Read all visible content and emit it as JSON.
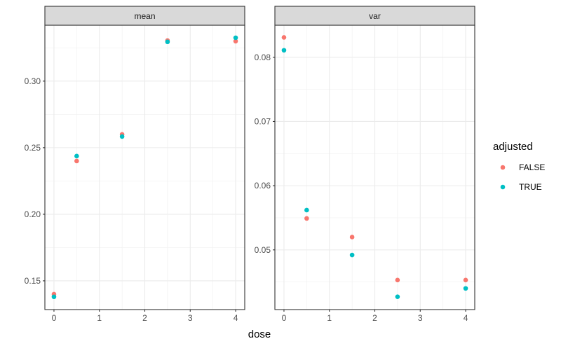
{
  "chart_data": {
    "type": "scatter",
    "xlabel": "dose",
    "facets": [
      {
        "title": "mean",
        "ylim": [
          0.1284,
          0.342
        ],
        "yticks": [
          0.15,
          0.2,
          0.25,
          0.3
        ],
        "ytick_labels": [
          "0.15",
          "0.20",
          "0.25",
          "0.30"
        ],
        "series": [
          {
            "name": "FALSE",
            "x": [
              0,
              0.5,
              1.5,
              2.5,
              4
            ],
            "y": [
              0.14,
              0.24,
              0.26,
              0.3305,
              0.33
            ]
          },
          {
            "name": "TRUE",
            "x": [
              0,
              0.5,
              1.5,
              2.5,
              4
            ],
            "y": [
              0.138,
              0.2437,
              0.2584,
              0.3295,
              0.3326
            ]
          }
        ]
      },
      {
        "title": "var",
        "ylim": [
          0.0407,
          0.085
        ],
        "yticks": [
          0.05,
          0.06,
          0.07,
          0.08
        ],
        "ytick_labels": [
          "0.05",
          "0.06",
          "0.07",
          "0.08"
        ],
        "series": [
          {
            "name": "FALSE",
            "x": [
              0,
              0.5,
              1.5,
              2.5,
              4
            ],
            "y": [
              0.0831,
              0.0549,
              0.052,
              0.0453,
              0.0453
            ]
          },
          {
            "name": "TRUE",
            "x": [
              0,
              0.5,
              1.5,
              2.5,
              4
            ],
            "y": [
              0.0811,
              0.0562,
              0.0492,
              0.0427,
              0.044
            ]
          }
        ]
      }
    ],
    "xlim": [
      -0.2,
      4.2
    ],
    "xticks": [
      0,
      1,
      2,
      3,
      4
    ],
    "xtick_labels": [
      "0",
      "1",
      "2",
      "3",
      "4"
    ],
    "grid": true,
    "legend": {
      "title": "adjusted",
      "position": "right",
      "entries": [
        {
          "label": "FALSE",
          "color": "#F8766D"
        },
        {
          "label": "TRUE",
          "color": "#00BFC4"
        }
      ]
    },
    "colors": {
      "FALSE": "#F8766D",
      "TRUE": "#00BFC4"
    }
  }
}
